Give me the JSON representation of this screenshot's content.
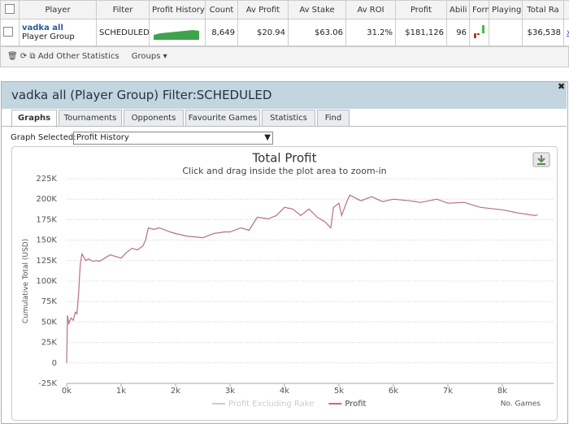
{
  "table": {
    "headers": [
      "Player",
      "Filter",
      "Profit History",
      "Count",
      "Av Profit",
      "Av Stake",
      "Av ROI",
      "Profit",
      "Abili",
      "Form",
      "Playing",
      "Total Ra"
    ],
    "row": {
      "player": "vadka all",
      "group": "Player Group",
      "filter": "SCHEDULED",
      "count": "8,649",
      "av_profit": "$20.94",
      "av_stake": "$63.06",
      "av_roi": "31.2%",
      "profit": "$181,126",
      "ability": "96",
      "total": "$36,538",
      "remove": "x"
    }
  },
  "toolbar": {
    "add": "Add Other Statistics",
    "groups": "Groups"
  },
  "window": {
    "title": "vadka all (Player Group) Filter:SCHEDULED",
    "tabs": [
      "Graphs",
      "Tournaments",
      "Opponents",
      "Favourite Games",
      "Statistics",
      "Find"
    ],
    "graph_label": "Graph Selected:",
    "graph_value": "Profit History"
  },
  "chart": {
    "type": "line",
    "title": "Total Profit",
    "subtitle": "Click and drag inside the plot area to zoom-in",
    "y_label": "Cumulative Total (USD)",
    "x_label": "No. Games",
    "xlim": [
      0,
      8950
    ],
    "ylim": [
      -25000,
      225000
    ],
    "xticks": [
      {
        "value": 0,
        "label": "0k"
      },
      {
        "value": 1000,
        "label": "1k"
      },
      {
        "value": 2000,
        "label": "2k"
      },
      {
        "value": 3000,
        "label": "3k"
      },
      {
        "value": 4000,
        "label": "4k"
      },
      {
        "value": 5000,
        "label": "5k"
      },
      {
        "value": 6000,
        "label": "6k"
      },
      {
        "value": 7000,
        "label": "7k"
      },
      {
        "value": 8000,
        "label": "8k"
      }
    ],
    "yticks": [
      {
        "value": -25000,
        "label": "-25K"
      },
      0,
      {
        "value": 25000,
        "label": "25K"
      },
      {
        "value": 50000,
        "label": "50K"
      },
      {
        "value": 75000,
        "label": "75K"
      },
      {
        "value": 100000,
        "label": "100K"
      },
      {
        "value": 125000,
        "label": "125K"
      },
      {
        "value": 150000,
        "label": "150K"
      },
      {
        "value": 175000,
        "label": "175K"
      },
      {
        "value": 200000,
        "label": "200K"
      },
      {
        "value": 225000,
        "label": "225K"
      }
    ],
    "grid": true,
    "series": [
      {
        "name": "Profit Excluding Rake",
        "color": "#cccccc",
        "visible": false
      },
      {
        "name": "Profit",
        "color": "#b8717a",
        "visible": true,
        "x": [
          0,
          15,
          40,
          80,
          120,
          160,
          190,
          220,
          250,
          280,
          310,
          350,
          400,
          480,
          550,
          600,
          700,
          800,
          900,
          1000,
          1100,
          1200,
          1300,
          1400,
          1450,
          1500,
          1600,
          1700,
          1900,
          2000,
          2200,
          2500,
          2700,
          2900,
          3000,
          3200,
          3350,
          3500,
          3700,
          3850,
          4000,
          4150,
          4300,
          4450,
          4600,
          4750,
          4850,
          4900,
          5000,
          5050,
          5150,
          5200,
          5400,
          5600,
          5800,
          6000,
          6300,
          6500,
          6800,
          7000,
          7300,
          7600,
          8000,
          8300,
          8600,
          8649
        ],
        "values": [
          0,
          58000,
          48000,
          55000,
          52000,
          62000,
          60000,
          85000,
          120000,
          133000,
          130000,
          125000,
          127000,
          124000,
          125000,
          124000,
          128000,
          132000,
          130000,
          128000,
          135000,
          140000,
          138000,
          143000,
          150000,
          165000,
          163000,
          165000,
          160000,
          158000,
          155000,
          153000,
          158000,
          160000,
          160000,
          165000,
          162000,
          178000,
          176000,
          180000,
          190000,
          188000,
          180000,
          188000,
          178000,
          172000,
          165000,
          190000,
          195000,
          180000,
          198000,
          205000,
          198000,
          203000,
          197000,
          200000,
          198000,
          196000,
          200000,
          195000,
          196000,
          190000,
          187000,
          183000,
          180000,
          181000
        ]
      }
    ]
  }
}
